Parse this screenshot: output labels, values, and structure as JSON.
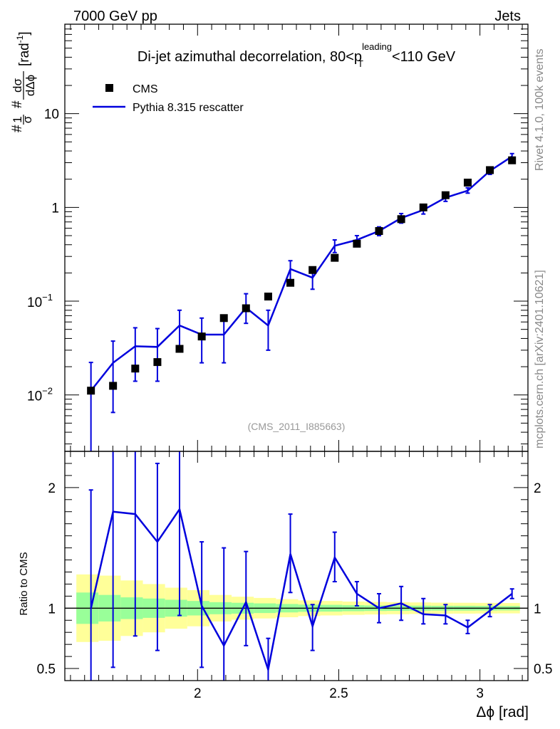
{
  "header": {
    "left": "7000 GeV pp",
    "right": "Jets"
  },
  "side_labels": {
    "right_top": "Rivet 4.1.0,  100k events",
    "right_bottom": "mcplots.cern.ch [arXiv:2401.10621]"
  },
  "chart_data": {
    "type": "scatter",
    "title": "Di-jet azimuthal decorrelation, 80<p_T^leading<110 GeV",
    "title_parts": {
      "prefix": "Di-jet azimuthal decorrelation, 80<p",
      "subscript": "T",
      "superscript": "leading",
      "suffix": "<110 GeV"
    },
    "watermark": "(CMS_2011_I885663)",
    "xlabel": "Δϕ [rad]",
    "ylabel": "#1/σ#dσ/dΔϕ [rad⁻¹]",
    "ylabel_parts": {
      "hash1": "#",
      "num1": "1",
      "den1": "σ",
      "hash2": "#",
      "num2": "dσ",
      "den2": "dΔϕ",
      "unit": "[rad",
      "exp": "-1",
      "close": "]"
    },
    "ratio_ylabel": "Ratio to CMS",
    "xlim": [
      1.53,
      3.17
    ],
    "ylim": [
      0.0025,
      90
    ],
    "yscale": "log",
    "ratio_ylim": [
      0.4,
      2.3
    ],
    "x_ticks": [
      "2",
      "2.5",
      "3"
    ],
    "x_tick_values": [
      2,
      2.5,
      3
    ],
    "y_ticks": [
      {
        "value": 0.01,
        "base": "10",
        "exp": "−2"
      },
      {
        "value": 0.1,
        "base": "10",
        "exp": "−1"
      },
      {
        "value": 1,
        "base": "1",
        "exp": ""
      },
      {
        "value": 10,
        "base": "10",
        "exp": ""
      }
    ],
    "ratio_ticks": [
      {
        "value": 0.5,
        "label": "0.5"
      },
      {
        "value": 1,
        "label": "1"
      },
      {
        "value": 2,
        "label": "2"
      }
    ],
    "legend": [
      {
        "name": "CMS",
        "marker": "square",
        "color": "#000000"
      },
      {
        "name": "Pythia 8.315 rescatter",
        "marker": "line",
        "color": "#0000dd"
      }
    ],
    "x": [
      1.6225,
      1.7007,
      1.7793,
      1.8578,
      1.9362,
      2.0148,
      2.0932,
      2.1716,
      2.2502,
      2.3287,
      2.4072,
      2.4857,
      2.5642,
      2.6427,
      2.7212,
      2.7997,
      2.8782,
      2.9567,
      3.0352,
      3.1137
    ],
    "series": [
      {
        "name": "CMS",
        "values": [
          0.0111,
          0.0125,
          0.0191,
          0.0224,
          0.031,
          0.042,
          0.066,
          0.084,
          0.112,
          0.157,
          0.215,
          0.29,
          0.41,
          0.56,
          0.75,
          1.0,
          1.35,
          1.84,
          2.5,
          3.18
        ]
      },
      {
        "name": "Pythia 8.315 rescatter",
        "values": [
          0.0111,
          0.022,
          0.033,
          0.0325,
          0.055,
          0.044,
          0.044,
          0.085,
          0.055,
          0.22,
          0.178,
          0.39,
          0.45,
          0.56,
          0.77,
          0.94,
          1.27,
          1.51,
          2.45,
          3.5
        ],
        "err_up": [
          0.0222,
          0.0375,
          0.052,
          0.051,
          0.08,
          0.066,
          0.066,
          0.12,
          0.08,
          0.27,
          0.226,
          0.45,
          0.5,
          0.62,
          0.86,
          1.03,
          1.38,
          1.62,
          2.65,
          3.75
        ],
        "err_down": [
          0.0018,
          0.0065,
          0.014,
          0.014,
          0.029,
          0.022,
          0.022,
          0.058,
          0.03,
          0.165,
          0.134,
          0.33,
          0.4,
          0.5,
          0.68,
          0.85,
          1.16,
          1.42,
          2.25,
          3.25
        ]
      }
    ],
    "ratio": {
      "values": [
        1.0,
        1.8,
        1.78,
        1.55,
        1.82,
        1.02,
        0.69,
        1.05,
        0.49,
        1.45,
        0.85,
        1.42,
        1.12,
        1.0,
        1.04,
        0.95,
        0.94,
        0.84,
        0.98,
        1.12
      ],
      "err_up": [
        1.98,
        2.4,
        2.4,
        2.2,
        2.4,
        1.55,
        1.5,
        1.47,
        0.75,
        1.78,
        1.03,
        1.63,
        1.22,
        1.12,
        1.18,
        1.08,
        1.03,
        0.9,
        1.03,
        1.16
      ],
      "err_down": [
        0.3,
        0.51,
        0.77,
        0.65,
        0.94,
        0.51,
        0.3,
        0.69,
        0.3,
        1.13,
        0.65,
        1.22,
        1.02,
        0.88,
        0.9,
        0.87,
        0.87,
        0.79,
        0.93,
        1.08
      ]
    },
    "uncertainty_bands": {
      "inner_color": "#99ff99",
      "outer_color": "#ffff99",
      "bin_edges": [
        1.5708,
        1.6493,
        1.7278,
        1.8064,
        1.8849,
        1.9635,
        2.042,
        2.1206,
        2.1991,
        2.2777,
        2.3562,
        2.4347,
        2.5133,
        2.5918,
        2.6704,
        2.7489,
        2.8274,
        2.906,
        2.9845,
        3.0631,
        3.1416
      ],
      "inner_lo": [
        0.87,
        0.89,
        0.91,
        0.92,
        0.93,
        0.94,
        0.95,
        0.955,
        0.96,
        0.965,
        0.97,
        0.972,
        0.975,
        0.977,
        0.978,
        0.979,
        0.98,
        0.98,
        0.981,
        0.982
      ],
      "inner_hi": [
        1.13,
        1.11,
        1.09,
        1.08,
        1.07,
        1.06,
        1.05,
        1.045,
        1.04,
        1.035,
        1.03,
        1.028,
        1.025,
        1.023,
        1.022,
        1.021,
        1.02,
        1.02,
        1.019,
        1.018
      ],
      "outer_lo": [
        0.72,
        0.73,
        0.77,
        0.8,
        0.83,
        0.85,
        0.89,
        0.905,
        0.915,
        0.925,
        0.935,
        0.94,
        0.945,
        0.948,
        0.95,
        0.952,
        0.954,
        0.955,
        0.956,
        0.957
      ],
      "outer_hi": [
        1.28,
        1.27,
        1.23,
        1.2,
        1.17,
        1.15,
        1.11,
        1.095,
        1.085,
        1.075,
        1.065,
        1.06,
        1.055,
        1.052,
        1.05,
        1.048,
        1.046,
        1.045,
        1.044,
        1.043
      ]
    },
    "colors": {
      "data": "#000000",
      "mc": "#0000dd",
      "watermark": "#999999",
      "side_text": "#888888"
    }
  }
}
